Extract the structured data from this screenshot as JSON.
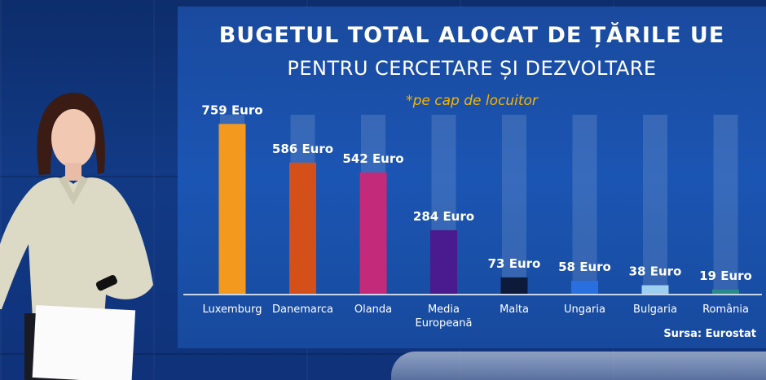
{
  "chart_data": {
    "type": "bar",
    "title": "BUGETUL TOTAL ALOCAT DE ȚĂRILE UE",
    "subtitle_line": "PENTRU CERCETARE ȘI DEZVOLTARE",
    "note": "*pe cap de locuitor",
    "categories": [
      "Luxemburg",
      "Danemarca",
      "Olanda",
      "Media Europeană",
      "Malta",
      "Ungaria",
      "Bulgaria",
      "România"
    ],
    "category_lines": [
      [
        "Luxemburg"
      ],
      [
        "Danemarca"
      ],
      [
        "Olanda"
      ],
      [
        "Media",
        "Europeană"
      ],
      [
        "Malta"
      ],
      [
        "Ungaria"
      ],
      [
        "Bulgaria"
      ],
      [
        "România"
      ]
    ],
    "values": [
      759,
      586,
      542,
      284,
      73,
      58,
      38,
      19
    ],
    "value_labels": [
      "759 Euro",
      "586 Euro",
      "542 Euro",
      "284 Euro",
      "73 Euro",
      "58 Euro",
      "38 Euro",
      "19 Euro"
    ],
    "bar_colors": [
      "#f39a1e",
      "#d3501a",
      "#c42a7a",
      "#4a1a8f",
      "#0d1a3a",
      "#2a6fe0",
      "#9ecff0",
      "#2a8a8a"
    ],
    "ylim": [
      0,
      800
    ],
    "source": "Sursa: Eurostat"
  }
}
